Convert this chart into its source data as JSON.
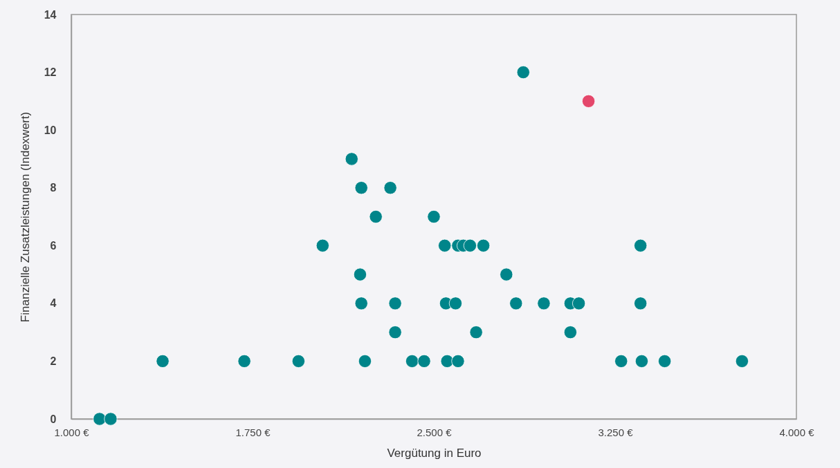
{
  "chart_data": {
    "type": "scatter",
    "xlabel": "Vergütung in Euro",
    "ylabel": "Finanzielle Zusatzleistungen (Indexwert)",
    "xlim": [
      1000,
      4000
    ],
    "xticks": [
      {
        "value": 1000,
        "label": "1.000 €"
      },
      {
        "value": 1750,
        "label": "1.750 €"
      },
      {
        "value": 2500,
        "label": "2.500 €"
      },
      {
        "value": 3250,
        "label": "3.250 €"
      },
      {
        "value": 4000,
        "label": "4.000 €"
      }
    ],
    "ylim": [
      0,
      14
    ],
    "yticks": [
      0,
      2,
      4,
      6,
      8,
      10,
      12,
      14
    ],
    "grid": false,
    "marker": "circle",
    "series": [
      {
        "color": "#00858a",
        "x": [
          1117,
          1163,
          1378,
          1716,
          1940,
          2040,
          2160,
          2200,
          2320,
          2260,
          2500,
          2195,
          2200,
          2340,
          2340,
          2215,
          2410,
          2460,
          2555,
          2600,
          2545,
          2600,
          2622,
          2650,
          2705,
          2550,
          2590,
          2675,
          2800,
          2870,
          3355,
          2840,
          2955,
          3065,
          3100,
          3355,
          3065,
          3275,
          3360,
          3455,
          3775
        ],
        "values": [
          0,
          0,
          2,
          2,
          2,
          6,
          9,
          8,
          8,
          7,
          7,
          5,
          4,
          4,
          3,
          2,
          2,
          2,
          2,
          2,
          6,
          6,
          6,
          6,
          6,
          4,
          4,
          3,
          5,
          12,
          6,
          4,
          4,
          4,
          4,
          4,
          3,
          2,
          2,
          2,
          2
        ]
      },
      {
        "color": "#e4476b",
        "x": [
          3140
        ],
        "values": [
          11
        ]
      }
    ]
  }
}
